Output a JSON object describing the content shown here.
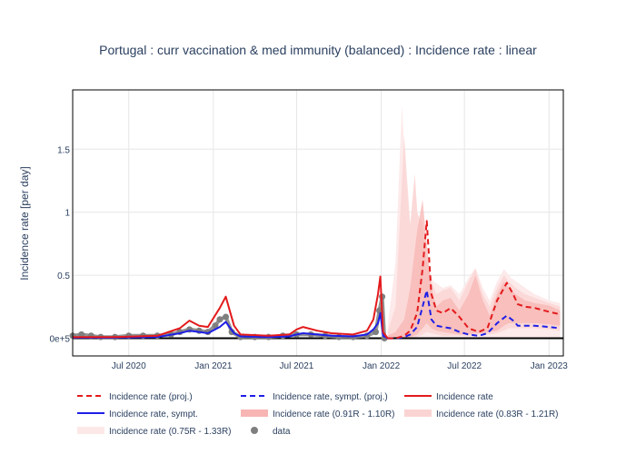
{
  "chart_data": {
    "type": "line",
    "title": "Portugal : curr vaccination & med immunity (balanced) : Incidence rate : linear",
    "xlabel": "",
    "ylabel": "Incidence rate [per day]",
    "x_range": [
      "2020-03-01",
      "2023-02-01"
    ],
    "ylim": [
      -0.14,
      1.97
    ],
    "x_ticks": [
      {
        "date": "2020-07-01",
        "label": "Jul 2020"
      },
      {
        "date": "2021-01-01",
        "label": "Jan 2021"
      },
      {
        "date": "2021-07-01",
        "label": "Jul 2021"
      },
      {
        "date": "2022-01-01",
        "label": "Jan 2022"
      },
      {
        "date": "2022-07-01",
        "label": "Jul 2022"
      },
      {
        "date": "2023-01-01",
        "label": "Jan 2023"
      }
    ],
    "y_ticks": [
      {
        "value": 0,
        "label": "0e+5"
      },
      {
        "value": 0.5,
        "label": "0.5"
      },
      {
        "value": 1,
        "label": "1"
      },
      {
        "value": 1.5,
        "label": "1.5"
      }
    ],
    "grid": true,
    "legend_position": "bottom",
    "legend": [
      {
        "key": "proj",
        "label": "Incidence rate (proj.)",
        "style": "dash",
        "color": "#e31a1c"
      },
      {
        "key": "sympt_proj",
        "label": "Incidence rate, sympt. (proj.)",
        "style": "dash",
        "color": "#1f1fe6"
      },
      {
        "key": "rate",
        "label": "Incidence rate",
        "style": "line",
        "color": "#e31a1c"
      },
      {
        "key": "sympt",
        "label": "Incidence rate, sympt.",
        "style": "line",
        "color": "#1f1fe6"
      },
      {
        "key": "band1",
        "label": "Incidence rate (0.91R - 1.10R)",
        "style": "band",
        "color": "#f7b5b3"
      },
      {
        "key": "band2",
        "label": "Incidence rate (0.83R - 1.21R)",
        "style": "band",
        "color": "#fad4d3"
      },
      {
        "key": "band3",
        "label": "Incidence rate (0.75R - 1.33R)",
        "style": "band",
        "color": "#fde8e8"
      },
      {
        "key": "data",
        "label": "data",
        "style": "marker",
        "color": "#7f7f7f"
      }
    ],
    "colors": {
      "red": "#e31a1c",
      "blue": "#1f1fe6",
      "data": "#7f7f7f",
      "zero_line": "#000000"
    },
    "series": [
      {
        "name": "Incidence rate",
        "x": [
          "2020-03-01",
          "2020-06-01",
          "2020-09-01",
          "2020-10-20",
          "2020-11-10",
          "2020-12-01",
          "2020-12-20",
          "2021-01-15",
          "2021-01-28",
          "2021-02-15",
          "2021-03-01",
          "2021-05-01",
          "2021-06-15",
          "2021-07-01",
          "2021-07-15",
          "2021-08-15",
          "2021-09-15",
          "2021-11-01",
          "2021-12-01",
          "2021-12-15",
          "2021-12-25",
          "2021-12-30",
          "2022-01-05",
          "2022-01-15"
        ],
        "y": [
          0.01,
          0.01,
          0.02,
          0.08,
          0.14,
          0.1,
          0.09,
          0.24,
          0.33,
          0.1,
          0.03,
          0.02,
          0.03,
          0.07,
          0.09,
          0.06,
          0.04,
          0.03,
          0.06,
          0.15,
          0.35,
          0.49,
          0.05,
          0.0
        ]
      },
      {
        "name": "Incidence rate, sympt.",
        "x": [
          "2020-03-01",
          "2020-06-01",
          "2020-09-01",
          "2020-10-20",
          "2020-11-10",
          "2020-12-01",
          "2020-12-20",
          "2021-01-15",
          "2021-01-28",
          "2021-02-15",
          "2021-03-01",
          "2021-05-01",
          "2021-06-15",
          "2021-07-01",
          "2021-07-15",
          "2021-08-15",
          "2021-09-15",
          "2021-11-01",
          "2021-12-01",
          "2021-12-15",
          "2021-12-25",
          "2021-12-30",
          "2022-01-05",
          "2022-01-15"
        ],
        "y": [
          0.005,
          0.005,
          0.01,
          0.04,
          0.06,
          0.05,
          0.04,
          0.09,
          0.13,
          0.04,
          0.015,
          0.01,
          0.015,
          0.03,
          0.04,
          0.03,
          0.02,
          0.015,
          0.03,
          0.07,
          0.12,
          0.2,
          0.02,
          0.0
        ]
      },
      {
        "name": "Incidence rate (proj.)",
        "x": [
          "2022-01-15",
          "2022-02-01",
          "2022-02-20",
          "2022-03-05",
          "2022-03-20",
          "2022-04-01",
          "2022-04-10",
          "2022-04-20",
          "2022-05-01",
          "2022-05-15",
          "2022-06-01",
          "2022-06-20",
          "2022-07-10",
          "2022-08-01",
          "2022-08-20",
          "2022-09-10",
          "2022-10-01",
          "2022-10-15",
          "2022-10-25",
          "2022-11-10",
          "2022-12-01",
          "2023-01-01",
          "2023-01-25"
        ],
        "y": [
          0.0,
          0.0,
          0.02,
          0.06,
          0.2,
          0.55,
          0.93,
          0.35,
          0.22,
          0.2,
          0.24,
          0.17,
          0.08,
          0.05,
          0.08,
          0.3,
          0.44,
          0.35,
          0.27,
          0.25,
          0.24,
          0.21,
          0.19
        ]
      },
      {
        "name": "Incidence rate, sympt. (proj.)",
        "x": [
          "2022-01-15",
          "2022-02-01",
          "2022-02-20",
          "2022-03-05",
          "2022-03-20",
          "2022-04-01",
          "2022-04-10",
          "2022-04-20",
          "2022-05-01",
          "2022-05-15",
          "2022-06-01",
          "2022-06-20",
          "2022-07-10",
          "2022-08-01",
          "2022-08-20",
          "2022-09-10",
          "2022-10-01",
          "2022-10-15",
          "2022-10-25",
          "2022-11-10",
          "2022-12-01",
          "2023-01-01",
          "2023-01-25"
        ],
        "y": [
          0.0,
          0.0,
          0.01,
          0.03,
          0.09,
          0.25,
          0.38,
          0.15,
          0.1,
          0.09,
          0.08,
          0.05,
          0.03,
          0.02,
          0.04,
          0.12,
          0.18,
          0.14,
          0.1,
          0.1,
          0.1,
          0.09,
          0.08
        ]
      },
      {
        "name": "Incidence rate (0.91R - 1.10R)",
        "x": [
          "2022-01-15",
          "2022-02-01",
          "2022-02-20",
          "2022-03-05",
          "2022-03-20",
          "2022-04-01",
          "2022-04-10",
          "2022-04-20",
          "2022-05-01",
          "2022-05-15",
          "2022-06-01",
          "2022-06-20",
          "2022-07-10",
          "2022-07-25",
          "2022-08-10",
          "2022-08-25",
          "2022-09-10",
          "2022-09-25",
          "2022-10-05",
          "2022-10-20",
          "2022-11-10",
          "2022-12-01",
          "2023-01-01",
          "2023-01-25"
        ],
        "upper": [
          0.02,
          0.05,
          0.15,
          0.4,
          0.85,
          1.1,
          0.75,
          0.4,
          0.25,
          0.3,
          0.32,
          0.22,
          0.35,
          0.5,
          0.3,
          0.18,
          0.35,
          0.45,
          0.4,
          0.35,
          0.3,
          0.28,
          0.26,
          0.22
        ],
        "lower": [
          0,
          0,
          0,
          0.01,
          0.03,
          0.08,
          0.12,
          0.08,
          0.06,
          0.05,
          0.04,
          0.03,
          0.03,
          0.04,
          0.04,
          0.05,
          0.06,
          0.1,
          0.12,
          0.12,
          0.12,
          0.12,
          0.11,
          0.1
        ]
      },
      {
        "name": "Incidence rate (0.83R - 1.21R)",
        "x": [
          "2022-01-15",
          "2022-02-01",
          "2022-02-20",
          "2022-03-05",
          "2022-03-15",
          "2022-03-20",
          "2022-04-01",
          "2022-04-10",
          "2022-04-20",
          "2022-05-01",
          "2022-05-15",
          "2022-06-01",
          "2022-06-20",
          "2022-07-10",
          "2022-07-25",
          "2022-08-10",
          "2022-08-25",
          "2022-09-10",
          "2022-09-25",
          "2022-10-05",
          "2022-10-20",
          "2022-11-10",
          "2022-12-01",
          "2023-01-01",
          "2023-01-25"
        ],
        "upper": [
          0.05,
          0.25,
          1.6,
          0.9,
          1.3,
          1.0,
          0.9,
          0.6,
          0.45,
          0.35,
          0.38,
          0.4,
          0.3,
          0.45,
          0.55,
          0.35,
          0.25,
          0.4,
          0.5,
          0.45,
          0.4,
          0.35,
          0.32,
          0.28,
          0.25
        ],
        "lower": [
          0,
          0,
          0,
          0,
          0,
          0.01,
          0.03,
          0.05,
          0.04,
          0.03,
          0.02,
          0.02,
          0.02,
          0.02,
          0.03,
          0.03,
          0.03,
          0.04,
          0.06,
          0.08,
          0.08,
          0.08,
          0.08,
          0.07,
          0.06
        ]
      },
      {
        "name": "Incidence rate (0.75R - 1.33R)",
        "x": [
          "2022-01-15",
          "2022-02-01",
          "2022-02-15",
          "2022-02-25",
          "2022-03-05",
          "2022-03-15",
          "2022-03-25",
          "2022-04-10",
          "2022-04-25",
          "2022-05-15",
          "2022-06-01",
          "2022-06-20",
          "2022-07-10",
          "2022-07-25",
          "2022-08-10",
          "2022-08-25",
          "2022-09-10",
          "2022-09-25",
          "2022-10-10",
          "2022-11-10",
          "2022-12-01",
          "2023-01-01",
          "2023-01-25"
        ],
        "upper": [
          0.1,
          0.6,
          1.85,
          1.2,
          0.9,
          1.3,
          0.8,
          0.6,
          0.45,
          0.4,
          0.42,
          0.35,
          0.48,
          0.56,
          0.4,
          0.3,
          0.45,
          0.55,
          0.48,
          0.4,
          0.35,
          0.3,
          0.28
        ],
        "lower": [
          0,
          0,
          0,
          0,
          0,
          0,
          0,
          0,
          0,
          0,
          0,
          0,
          0,
          0,
          0,
          0,
          0,
          0,
          0,
          0,
          0,
          0,
          0
        ]
      },
      {
        "name": "data",
        "x": [
          "2020-03-01",
          "2020-03-20",
          "2020-04-10",
          "2020-05-01",
          "2020-06-01",
          "2020-07-01",
          "2020-08-01",
          "2020-09-01",
          "2020-10-01",
          "2020-10-20",
          "2020-11-10",
          "2020-12-01",
          "2020-12-20",
          "2021-01-05",
          "2021-01-15",
          "2021-01-28",
          "2021-02-10",
          "2021-03-01",
          "2021-04-01",
          "2021-05-01",
          "2021-06-01",
          "2021-07-01",
          "2021-08-01",
          "2021-09-01",
          "2021-10-01",
          "2021-11-01",
          "2021-12-01",
          "2021-12-20",
          "2021-12-28",
          "2022-01-03",
          "2022-01-08"
        ],
        "y": [
          0.02,
          0.03,
          0.02,
          0.01,
          0.01,
          0.02,
          0.02,
          0.02,
          0.03,
          0.05,
          0.07,
          0.06,
          0.05,
          0.1,
          0.15,
          0.17,
          0.05,
          0.01,
          0.01,
          0.01,
          0.02,
          0.03,
          0.03,
          0.02,
          0.01,
          0.01,
          0.02,
          0.05,
          0.22,
          0.33,
          0.0
        ]
      }
    ]
  }
}
